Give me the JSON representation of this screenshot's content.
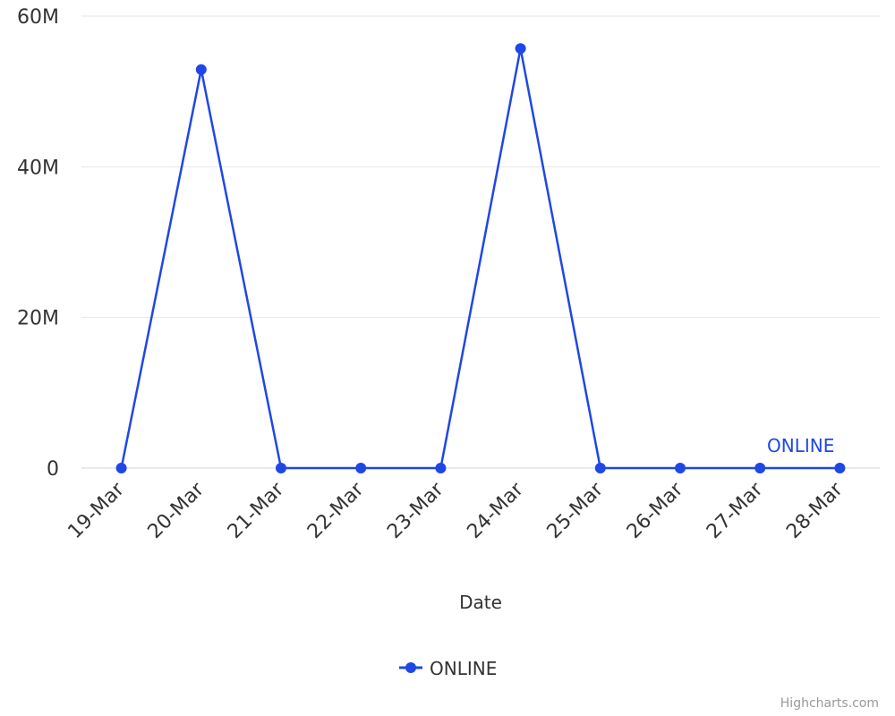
{
  "chart_data": {
    "type": "line",
    "x_axis_title": "Date",
    "categories": [
      "19-Mar",
      "20-Mar",
      "21-Mar",
      "22-Mar",
      "23-Mar",
      "24-Mar",
      "25-Mar",
      "26-Mar",
      "27-Mar",
      "28-Mar"
    ],
    "series": [
      {
        "name": "ONLINE",
        "color": "#1f47e6",
        "values": [
          0,
          52900000,
          0,
          0,
          0,
          55700000,
          0,
          0,
          0,
          0
        ]
      }
    ],
    "ylim": [
      0,
      60000000
    ],
    "yticks": [
      0,
      {
        "value": 20000000,
        "label": "20M"
      },
      {
        "value": 40000000,
        "label": "40M"
      },
      {
        "value": 60000000,
        "label": "60M"
      }
    ],
    "grid": true,
    "legend": "bottom",
    "credits": "Highcharts.com"
  }
}
